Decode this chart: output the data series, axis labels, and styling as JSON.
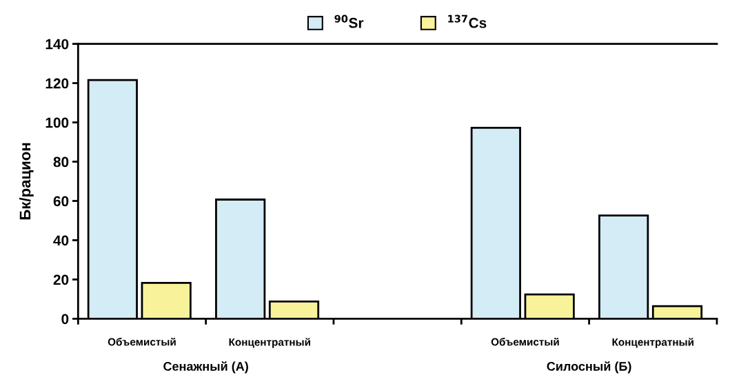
{
  "chart_data": {
    "type": "bar",
    "ylabel": "Бк/рацион",
    "categories": [
      "Объемистый",
      "Концентратный",
      null,
      "Объемистый",
      "Концентратный"
    ],
    "series": [
      {
        "name": "$^{90}$Sr",
        "color": "#d3ecf5",
        "values": [
          121.6,
          60.7,
          null,
          97.3,
          52.6
        ]
      },
      {
        "name": "$^{137}$Cs",
        "color": "#f8f39a",
        "values": [
          18.3,
          8.8,
          null,
          12.4,
          6.4
        ]
      }
    ],
    "ylim": [
      0,
      140
    ],
    "yticks": [
      0,
      20,
      40,
      60,
      80,
      100,
      120,
      140
    ],
    "annotations": [
      "Сенажный (А)",
      "Силосный (Б)"
    ],
    "grid": false,
    "legend": "top"
  }
}
